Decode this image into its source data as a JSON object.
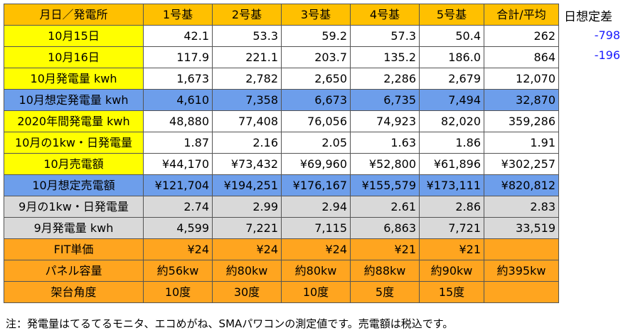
{
  "header": [
    "月日／発電所",
    "1号基",
    "2号基",
    "3号基",
    "4号基",
    "5号基",
    "合計/平均"
  ],
  "rows": [
    {
      "label": "10月15日",
      "style": "white",
      "values": [
        "42.1",
        "53.3",
        "59.2",
        "57.3",
        "50.4",
        "262"
      ]
    },
    {
      "label": "10月16日",
      "style": "white",
      "values": [
        "117.9",
        "221.1",
        "203.7",
        "135.2",
        "186.0",
        "864"
      ]
    },
    {
      "label": "10月発電量 kwh",
      "style": "white",
      "values": [
        "1,673",
        "2,782",
        "2,650",
        "2,286",
        "2,679",
        "12,070"
      ]
    },
    {
      "label": "10月想定発電量 kwh",
      "style": "blue",
      "values": [
        "4,610",
        "7,358",
        "6,673",
        "6,735",
        "7,494",
        "32,870"
      ]
    },
    {
      "label": "2020年間発電量 kwh",
      "style": "white",
      "values": [
        "48,880",
        "77,408",
        "76,056",
        "74,923",
        "82,020",
        "359,286"
      ]
    },
    {
      "label": "10月の1kw・日発電量",
      "style": "white",
      "values": [
        "1.87",
        "2.16",
        "2.05",
        "1.63",
        "1.86",
        "1.91"
      ]
    },
    {
      "label": "10月売電額",
      "style": "white",
      "values": [
        "¥44,170",
        "¥73,432",
        "¥69,960",
        "¥52,800",
        "¥61,896",
        "¥302,257"
      ]
    },
    {
      "label": "10月想定売電額",
      "style": "blue",
      "values": [
        "¥121,704",
        "¥194,251",
        "¥176,167",
        "¥155,579",
        "¥173,111",
        "¥820,812"
      ]
    },
    {
      "label": "9月の1kw・日発電量",
      "style": "gray",
      "values": [
        "2.74",
        "2.99",
        "2.94",
        "2.61",
        "2.86",
        "2.83"
      ]
    },
    {
      "label": "9月発電量 kwh",
      "style": "gray",
      "values": [
        "4,599",
        "7,221",
        "7,115",
        "6,863",
        "7,721",
        "33,519"
      ]
    },
    {
      "label": "FIT単価",
      "style": "orange",
      "align": "num",
      "values": [
        "¥24",
        "¥24",
        "¥24",
        "¥21",
        "¥21",
        ""
      ]
    },
    {
      "label": "パネル容量",
      "style": "orange",
      "align": "cen",
      "values": [
        "約56kw",
        "約80kw",
        "約80kw",
        "約88kw",
        "約90kw",
        "約395kw"
      ]
    },
    {
      "label": "架台角度",
      "style": "orange",
      "align": "cen",
      "values": [
        "10度",
        "30度",
        "10度",
        "5度",
        "15度",
        ""
      ]
    }
  ],
  "side": {
    "title": "日想定差",
    "values": [
      "-798",
      "-196"
    ]
  },
  "footnote": "注：発電量はてるてるモニタ、エコめがね、SMAパワコンの測定値です。売電額は税込です。"
}
